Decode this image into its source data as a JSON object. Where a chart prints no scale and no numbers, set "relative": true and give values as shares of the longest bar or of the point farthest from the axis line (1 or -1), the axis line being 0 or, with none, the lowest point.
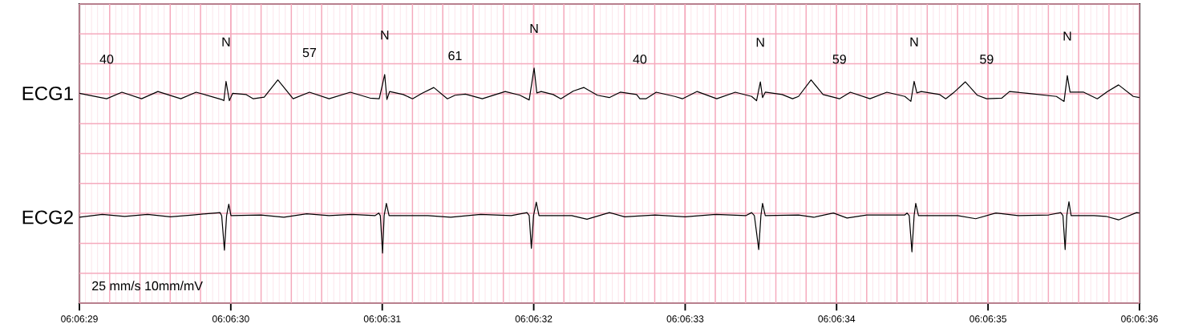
{
  "chart_data": {
    "type": "line",
    "relative": true,
    "xlim": [
      6.1080556,
      6.11
    ],
    "xticks": [
      {
        "value": 6.1080556,
        "label": "06:06:29"
      },
      {
        "value": 6.1083333,
        "label": "06:06:30"
      },
      {
        "value": 6.1086111,
        "label": "06:06:31"
      },
      {
        "value": 6.1088889,
        "label": "06:06:32"
      },
      {
        "value": 6.1091667,
        "label": "06:06:33"
      },
      {
        "value": 6.1094444,
        "label": "06:06:34"
      },
      {
        "value": 6.1097222,
        "label": "06:06:35"
      },
      {
        "value": 6.11,
        "label": "06:06:36"
      }
    ],
    "grid": true,
    "line_style": "solid",
    "series": [
      {
        "color": "#000000",
        "x": [
          6.1080556,
          6.1081056,
          6.1081336,
          6.1081696,
          6.1081996,
          6.1082416,
          6.1082696,
          6.1083166,
          6.1083206,
          6.1083246,
          6.1083306,
          6.1083366,
          6.1083616,
          6.1083746,
          6.1083946,
          6.1084196,
          6.1084476,
          6.1084776,
          6.1085136,
          6.1085526,
          6.1085886,
          6.1086056,
          6.1086156,
          6.1086196,
          6.1086246,
          6.1086496,
          6.1086666,
          6.1086836,
          6.1087056,
          6.1087306,
          6.1087446,
          6.1087636,
          6.1087946,
          6.1088366,
          6.1088636,
          6.1088806,
          6.1088896,
          6.1088946,
          6.1089026,
          6.1089246,
          6.1089386,
          6.1089616,
          6.1089806,
          6.1090056,
          6.1090276,
          6.1090476,
          6.1090776,
          6.1090836,
          6.1090946,
          6.1091136,
          6.1091476,
          6.1091616,
          6.1091886,
          6.1092246,
          6.1092586,
          6.1092886,
          6.1092976,
          6.1093046,
          6.1093086,
          6.1093136,
          6.1093446,
          6.1093636,
          6.1093746,
          6.1093976,
          6.1094196,
          6.1094496,
          6.1094696,
          6.1095056,
          6.1095366,
          6.1095696,
          6.1095806,
          6.1095866,
          6.1095916,
          6.1095996,
          6.1096336,
          6.1096446,
          6.1096586,
          6.1096806,
          6.1097026,
          6.1097196,
          6.1097476,
          6.1097616,
          6.1097946,
          6.1098476,
          6.1098616,
          6.1098676,
          6.1098726,
          6.1098976,
          6.1099226,
          6.1099416,
          6.1099616,
          6.1099886,
          6.1099996
        ],
        "values": [
          0.892,
          0.869,
          0.897,
          0.869,
          0.9,
          0.869,
          0.897,
          0.866,
          0.861,
          0.943,
          0.861,
          0.892,
          0.887,
          0.869,
          0.876,
          0.949,
          0.869,
          0.897,
          0.869,
          0.897,
          0.872,
          0.869,
          0.972,
          0.866,
          0.9,
          0.887,
          0.869,
          0.892,
          0.917,
          0.869,
          0.884,
          0.889,
          0.869,
          0.9,
          0.884,
          0.864,
          1.0,
          0.894,
          0.9,
          0.887,
          0.869,
          0.902,
          0.917,
          0.884,
          0.874,
          0.897,
          0.887,
          0.869,
          0.869,
          0.897,
          0.879,
          0.869,
          0.9,
          0.869,
          0.897,
          0.879,
          0.861,
          0.941,
          0.874,
          0.897,
          0.887,
          0.869,
          0.879,
          0.949,
          0.887,
          0.869,
          0.897,
          0.869,
          0.897,
          0.879,
          0.858,
          0.943,
          0.894,
          0.9,
          0.887,
          0.869,
          0.894,
          0.941,
          0.884,
          0.869,
          0.872,
          0.9,
          0.892,
          0.879,
          0.858,
          0.967,
          0.897,
          0.897,
          0.869,
          0.9,
          0.928,
          0.879,
          0.874
        ]
      },
      {
        "color": "#000000",
        "x": [
          6.1080556,
          6.1080976,
          6.1081386,
          6.1081806,
          6.1082226,
          6.1082636,
          6.1083136,
          6.1083166,
          6.1083216,
          6.1083256,
          6.1083296,
          6.1083336,
          6.1083886,
          6.1084306,
          6.1084726,
          6.1085136,
          6.1085556,
          6.1085976,
          6.1086046,
          6.1086076,
          6.1086116,
          6.1086146,
          6.1086186,
          6.1086236,
          6.1086946,
          6.1087366,
          6.1087916,
          6.1088476,
          6.1088766,
          6.1088806,
          6.1088846,
          6.1088886,
          6.1088936,
          6.1088986,
          6.1089586,
          6.1089866,
          6.1090276,
          6.1090556,
          6.1091116,
          6.1091666,
          6.1092226,
          6.1092776,
          6.1092886,
          6.1092936,
          6.1093016,
          6.1093056,
          6.1093086,
          6.1093136,
          6.1093746,
          6.1094026,
          6.1094386,
          6.1094636,
          6.1094996,
          6.1095696,
          6.1095736,
          6.1095776,
          6.1095826,
          6.1095866,
          6.1095896,
          6.1095946,
          6.1096666,
          6.1096996,
          6.1097366,
          6.1097776,
          6.1098336,
          6.1098556,
          6.1098596,
          6.1098636,
          6.1098666,
          6.1098706,
          6.1098746,
          6.1099166,
          6.1099386,
          6.1099616,
          6.1099946,
          6.1099996
        ],
        "values": [
          0.365,
          0.377,
          0.369,
          0.377,
          0.367,
          0.375,
          0.385,
          0.372,
          0.225,
          0.372,
          0.421,
          0.372,
          0.375,
          0.365,
          0.38,
          0.372,
          0.377,
          0.372,
          0.383,
          0.372,
          0.213,
          0.372,
          0.424,
          0.372,
          0.372,
          0.365,
          0.377,
          0.372,
          0.385,
          0.372,
          0.233,
          0.372,
          0.429,
          0.372,
          0.372,
          0.357,
          0.385,
          0.367,
          0.375,
          0.367,
          0.377,
          0.372,
          0.385,
          0.372,
          0.228,
          0.372,
          0.424,
          0.372,
          0.375,
          0.365,
          0.383,
          0.362,
          0.375,
          0.375,
          0.383,
          0.372,
          0.218,
          0.372,
          0.424,
          0.372,
          0.372,
          0.359,
          0.383,
          0.372,
          0.375,
          0.385,
          0.372,
          0.228,
          0.372,
          0.431,
          0.372,
          0.372,
          0.369,
          0.354,
          0.385,
          0.383
        ]
      }
    ],
    "annotations": [
      {
        "text": "ECG1",
        "x": 6.1080556,
        "y": 0.892
      },
      {
        "text": "ECG2",
        "x": 6.1080556,
        "y": 0.365
      },
      {
        "text": "N",
        "x": 6.1083246,
        "y": 0.943
      },
      {
        "text": "N",
        "x": 6.1086156,
        "y": 0.972
      },
      {
        "text": "N",
        "x": 6.1088896,
        "y": 1.0
      },
      {
        "text": "N",
        "x": 6.1093046,
        "y": 0.941
      },
      {
        "text": "N",
        "x": 6.1095866,
        "y": 0.943
      },
      {
        "text": "N",
        "x": 6.1098676,
        "y": 0.967
      },
      {
        "text": "40",
        "x": 6.1081056,
        "y": 0.869
      },
      {
        "text": "57",
        "x": 6.1084776,
        "y": 0.897
      },
      {
        "text": "61",
        "x": 6.1087446,
        "y": 0.884
      },
      {
        "text": "40",
        "x": 6.1090836,
        "y": 0.869
      },
      {
        "text": "59",
        "x": 6.1094496,
        "y": 0.869
      },
      {
        "text": "59",
        "x": 6.1097196,
        "y": 0.869
      },
      "25 mm/s 10mm/mV"
    ]
  }
}
